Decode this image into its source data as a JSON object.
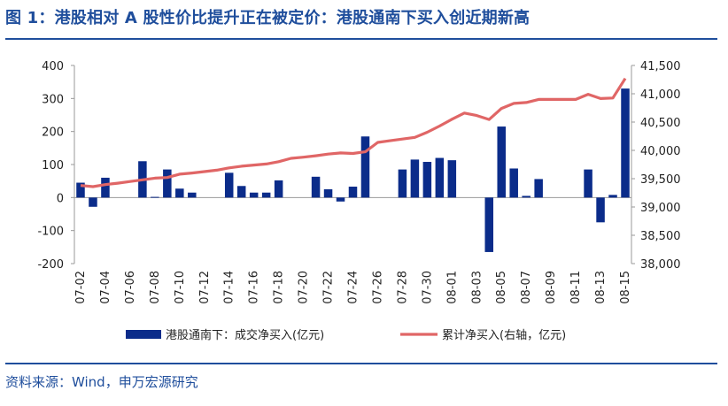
{
  "title": "图 1：港股相对 A 股性价比提升正在被定价：港股通南下买入创近期新高",
  "source": "资料来源：Wind，申万宏源研究",
  "chart_data": {
    "type": "bar+line",
    "categories": [
      "07-02",
      "07-03",
      "07-04",
      "07-05",
      "07-06",
      "07-07",
      "07-08",
      "07-09",
      "07-10",
      "07-11",
      "07-12",
      "07-13",
      "07-14",
      "07-15",
      "07-16",
      "07-17",
      "07-18",
      "07-19",
      "07-20",
      "07-21",
      "07-22",
      "07-23",
      "07-24",
      "07-25",
      "07-26",
      "07-27",
      "07-28",
      "07-29",
      "07-30",
      "07-31",
      "08-01",
      "08-02",
      "08-03",
      "08-04",
      "08-05",
      "08-06",
      "08-07",
      "08-08",
      "08-09",
      "08-10",
      "08-11",
      "08-12",
      "08-13",
      "08-14",
      "08-15"
    ],
    "xticks": [
      "07-02",
      "07-04",
      "07-06",
      "07-08",
      "07-10",
      "07-12",
      "07-14",
      "07-16",
      "07-18",
      "07-20",
      "07-22",
      "07-24",
      "07-26",
      "07-28",
      "07-30",
      "08-01",
      "08-03",
      "08-05",
      "08-07",
      "08-09",
      "08-11",
      "08-13",
      "08-15"
    ],
    "series": [
      {
        "name": "港股通南下：成交净买入(亿元)",
        "type": "bar",
        "axis": "left",
        "color": "#0b2c8a",
        "values": [
          45,
          -28,
          60,
          null,
          null,
          110,
          2,
          85,
          27,
          15,
          null,
          null,
          75,
          35,
          15,
          15,
          52,
          null,
          null,
          63,
          25,
          -12,
          33,
          185,
          null,
          null,
          85,
          115,
          108,
          120,
          113,
          null,
          null,
          -165,
          215,
          88,
          5,
          56,
          null,
          null,
          null,
          85,
          -75,
          8,
          330
        ]
      },
      {
        "name": "累计净买入(右轴，亿元)",
        "type": "line",
        "axis": "right",
        "color": "#e06666",
        "values": [
          39380,
          39360,
          39395,
          39420,
          39450,
          39480,
          39510,
          39520,
          39580,
          39600,
          39625,
          39650,
          39690,
          39720,
          39740,
          39760,
          39800,
          39860,
          39880,
          39905,
          39935,
          39955,
          39945,
          39975,
          40140,
          40170,
          40200,
          40230,
          40320,
          40430,
          40550,
          40660,
          40615,
          40545,
          40740,
          40830,
          40845,
          40900,
          40900,
          40900,
          40900,
          40990,
          40915,
          40925,
          41270
        ]
      }
    ],
    "yleft": {
      "lim": [
        -200,
        400
      ],
      "ticks": [
        -200,
        -100,
        0,
        100,
        200,
        300,
        400
      ]
    },
    "yright": {
      "lim": [
        38000,
        41500
      ],
      "ticks": [
        "38,000",
        "38,500",
        "39,000",
        "39,500",
        "40,000",
        "40,500",
        "41,000",
        "41,500"
      ],
      "tick_values": [
        38000,
        38500,
        39000,
        39500,
        40000,
        40500,
        41000,
        41500
      ]
    },
    "legend": {
      "placement": "bottom"
    }
  }
}
